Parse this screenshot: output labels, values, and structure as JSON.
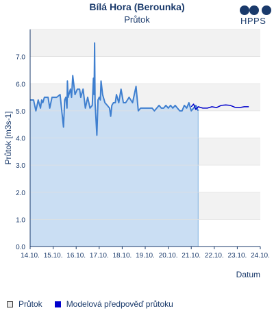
{
  "chart_data": {
    "type": "line",
    "title": "Bílá Hora (Berounka)",
    "subtitle": "Průtok",
    "xlabel": "Datum",
    "ylabel": "Průtok [m3s-1]",
    "ylim": [
      0,
      8
    ],
    "yticks": [
      "0.0",
      "1.0",
      "2.0",
      "3.0",
      "4.0",
      "5.0",
      "6.0",
      "7.0"
    ],
    "xticks": [
      "14.10.",
      "15.10.",
      "16.10.",
      "17.10.",
      "18.10.",
      "19.10.",
      "20.10.",
      "21.10.",
      "22.10.",
      "23.10.",
      "24.10."
    ],
    "xlim_days": [
      0,
      10
    ],
    "grid_bands": true,
    "legend_position": "bottom",
    "series": [
      {
        "name": "Průtok",
        "color": "#3f7fcf",
        "fill": "#c7dcf2",
        "x": [
          0.0,
          0.15,
          0.25,
          0.35,
          0.45,
          0.5,
          0.55,
          0.62,
          0.7,
          0.78,
          0.85,
          0.95,
          1.05,
          1.15,
          1.3,
          1.45,
          1.5,
          1.55,
          1.6,
          1.62,
          1.65,
          1.75,
          1.8,
          1.85,
          1.95,
          2.05,
          2.15,
          2.2,
          2.3,
          2.4,
          2.5,
          2.6,
          2.7,
          2.75,
          2.78,
          2.8,
          2.82,
          2.9,
          2.95,
          3.0,
          3.05,
          3.08,
          3.15,
          3.25,
          3.35,
          3.45,
          3.5,
          3.55,
          3.62,
          3.7,
          3.75,
          3.85,
          3.95,
          4.05,
          4.15,
          4.3,
          4.45,
          4.6,
          4.7,
          4.8,
          4.9,
          5.0,
          5.1,
          5.2,
          5.3,
          5.4,
          5.5,
          5.6,
          5.7,
          5.8,
          5.9,
          6.0,
          6.1,
          6.2,
          6.3,
          6.4,
          6.5,
          6.6,
          6.7,
          6.8,
          6.9,
          7.0,
          7.1,
          7.2,
          7.3
        ],
        "y": [
          5.4,
          5.4,
          5.0,
          5.4,
          5.1,
          5.4,
          5.3,
          5.5,
          5.5,
          5.5,
          5.1,
          5.5,
          5.5,
          5.5,
          5.6,
          4.4,
          5.4,
          5.5,
          5.1,
          6.1,
          5.5,
          5.8,
          5.5,
          6.3,
          5.6,
          5.8,
          5.8,
          5.5,
          5.8,
          5.1,
          5.5,
          5.1,
          5.2,
          6.2,
          5.6,
          7.5,
          5.3,
          4.1,
          5.4,
          5.5,
          5.4,
          6.1,
          5.6,
          5.3,
          5.2,
          5.1,
          4.8,
          5.2,
          5.3,
          5.3,
          5.6,
          5.3,
          5.8,
          5.3,
          5.3,
          5.5,
          5.3,
          5.9,
          5.0,
          5.1,
          5.1,
          5.1,
          5.1,
          5.1,
          5.1,
          5.0,
          5.1,
          5.2,
          5.1,
          5.1,
          5.2,
          5.1,
          5.2,
          5.1,
          5.2,
          5.1,
          5.0,
          5.0,
          5.2,
          5.1,
          5.3,
          5.0,
          5.1,
          5.2,
          5.0
        ]
      },
      {
        "name": "Modelová předpověď průtoku",
        "color": "#0000cc",
        "x": [
          7.0,
          7.1,
          7.2,
          7.3,
          7.5,
          7.7,
          7.9,
          8.1,
          8.3,
          8.5,
          8.7,
          8.9,
          9.1,
          9.3,
          9.5
        ],
        "y": [
          5.15,
          5.25,
          5.05,
          5.15,
          5.1,
          5.1,
          5.15,
          5.12,
          5.2,
          5.22,
          5.2,
          5.13,
          5.12,
          5.15,
          5.15
        ]
      }
    ]
  },
  "legend": {
    "item1": "Průtok",
    "item2": "Modelová předpověď průtoku"
  },
  "logo": {
    "text": "HPPS"
  }
}
